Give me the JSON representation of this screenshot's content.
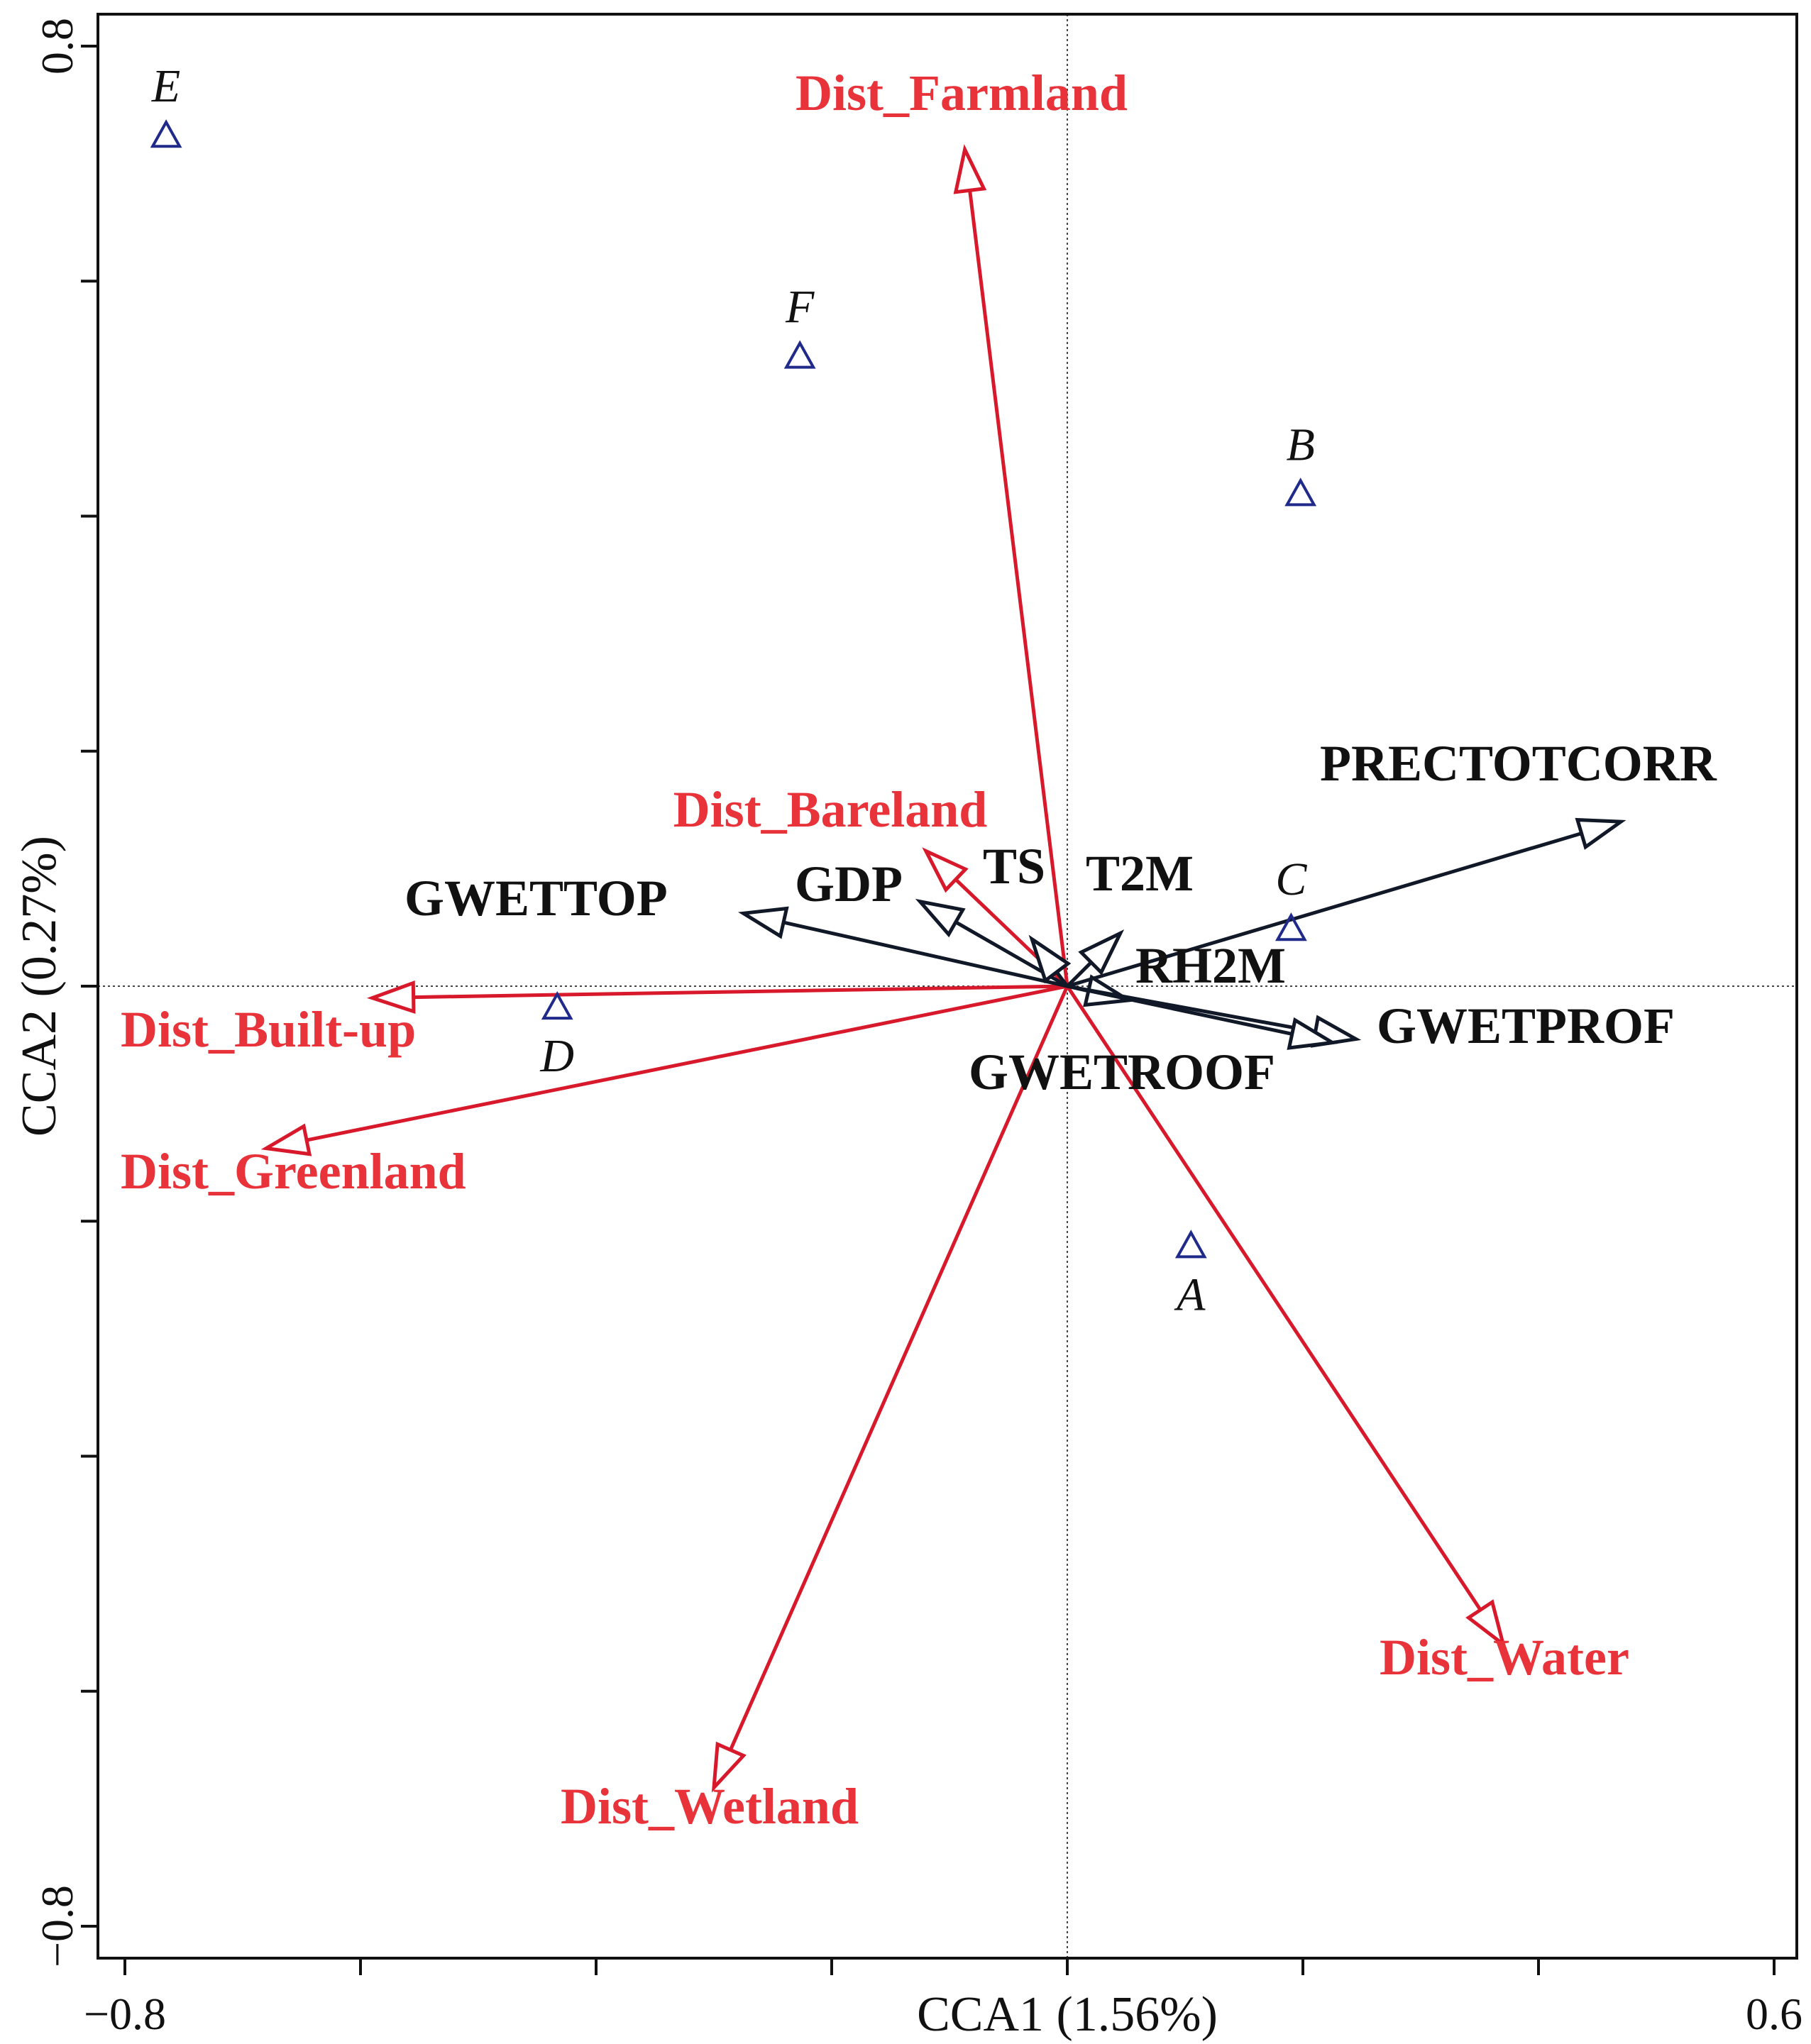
{
  "chart_data": {
    "type": "scatter",
    "xlabel": "CCA1 (1.56%)",
    "ylabel": "CCA2 (0.27%)",
    "xlim": [
      -0.82,
      0.62
    ],
    "ylim": [
      -0.82,
      0.82
    ],
    "x_tick_labels": [
      "−0.8",
      "0.6"
    ],
    "y_tick_labels": [
      "0.8",
      "−0.8"
    ],
    "x_ticks": [
      -0.8,
      -0.6,
      -0.4,
      -0.2,
      0.0,
      0.2,
      0.4,
      0.6
    ],
    "y_ticks": [
      -0.8,
      -0.6,
      -0.4,
      -0.2,
      0.0,
      0.2,
      0.4,
      0.6,
      0.8
    ],
    "origin_lines": true,
    "colors": {
      "env": "#d7192b",
      "env_text": "#e8333a",
      "clim": "#111827",
      "sites": "#1f2a8a"
    },
    "sites": [
      {
        "label": "E",
        "x": -0.765,
        "y": 0.725
      },
      {
        "label": "F",
        "x": -0.227,
        "y": 0.537
      },
      {
        "label": "B",
        "x": 0.198,
        "y": 0.42
      },
      {
        "label": "C",
        "x": 0.19,
        "y": 0.05
      },
      {
        "label": "D",
        "x": -0.433,
        "y": -0.017
      },
      {
        "label": "A",
        "x": 0.105,
        "y": -0.22
      }
    ],
    "env_vectors": [
      {
        "name": "Dist_Farmland",
        "x": -0.087,
        "y": 0.712
      },
      {
        "name": "Dist_Bareland",
        "x": -0.12,
        "y": 0.115
      },
      {
        "name": "Dist_Built-up",
        "x": -0.59,
        "y": -0.01
      },
      {
        "name": "Dist_Greenland",
        "x": -0.68,
        "y": -0.138
      },
      {
        "name": "Dist_Wetland",
        "x": -0.3,
        "y": -0.682
      },
      {
        "name": "Dist_Water",
        "x": 0.37,
        "y": -0.56
      }
    ],
    "clim_vectors": [
      {
        "name": "PRECTOTCORR",
        "x": 0.47,
        "y": 0.14
      },
      {
        "name": "GWETTOP",
        "x": -0.275,
        "y": 0.062
      },
      {
        "name": "GDP",
        "x": -0.125,
        "y": 0.072
      },
      {
        "name": "TS",
        "x": -0.03,
        "y": 0.04
      },
      {
        "name": "T2M",
        "x": 0.045,
        "y": 0.045
      },
      {
        "name": "RH2M",
        "x": 0.052,
        "y": -0.012
      },
      {
        "name": "GWETPROF",
        "x": 0.245,
        "y": -0.045
      },
      {
        "name": "GWETROOF",
        "x": 0.225,
        "y": -0.048
      }
    ]
  }
}
